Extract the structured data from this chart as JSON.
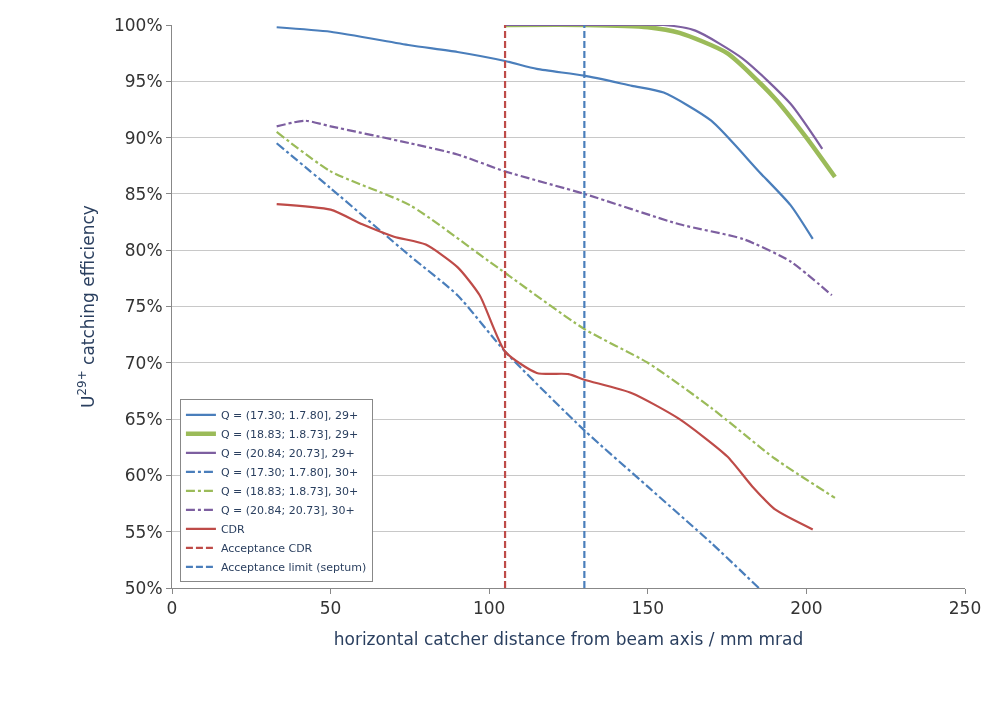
{
  "chart_data": {
    "type": "line",
    "xlabel": "horizontal catcher distance from beam axis / mm mrad",
    "ylabel": "U$^{29+}$ catching efficiency",
    "xlim": [
      0,
      250
    ],
    "xticks": [
      0,
      50,
      100,
      150,
      200,
      250
    ],
    "ylim": [
      50,
      100
    ],
    "yticks": [
      {
        "value": 50,
        "label": "50%"
      },
      {
        "value": 55,
        "label": "55%"
      },
      {
        "value": 60,
        "label": "60%"
      },
      {
        "value": 65,
        "label": "65%"
      },
      {
        "value": 70,
        "label": "70%"
      },
      {
        "value": 75,
        "label": "75%"
      },
      {
        "value": 80,
        "label": "80%"
      },
      {
        "value": 85,
        "label": "85%"
      },
      {
        "value": 90,
        "label": "90%"
      },
      {
        "value": 95,
        "label": "95%"
      },
      {
        "value": 100,
        "label": "100%"
      }
    ],
    "grid": "y",
    "legend": "bottom left",
    "marker": "none",
    "series": [
      {
        "name": "Q = (17.30; 1.7.80], 29+",
        "color": "#4a7ebb",
        "line_style": "solid",
        "x": [
          33,
          50,
          75,
          90,
          105,
          115,
          130,
          145,
          155,
          170,
          185,
          195,
          202
        ],
        "values": [
          99.8,
          99.4,
          98.2,
          97.6,
          96.8,
          96.1,
          95.5,
          94.6,
          94,
          91.5,
          87,
          84,
          81
        ]
      },
      {
        "name": "Q = (18.83; 1.8.73], 29+",
        "color": "#9bbb59",
        "line_style": "solid",
        "x": [
          105,
          130,
          150,
          160,
          175,
          190,
          200,
          209
        ],
        "values": [
          100,
          100,
          99.8,
          99.3,
          97.5,
          93.5,
          90,
          86.5
        ]
      },
      {
        "name": "Q = (20.84; 20.73], 29+",
        "color": "#7d5fa0",
        "line_style": "solid",
        "x": [
          105,
          130,
          155,
          165,
          180,
          195,
          205
        ],
        "values": [
          100,
          100,
          100,
          99.5,
          97,
          93,
          89
        ]
      },
      {
        "name": "Q = (17.30; 1.7.80], 30+",
        "color": "#4a7ebb",
        "line_style": "dashdot",
        "x": [
          33,
          50,
          75,
          90,
          105,
          130,
          150,
          170,
          185
        ],
        "values": [
          89.5,
          85.5,
          79.5,
          76,
          71,
          64,
          59,
          54,
          50
        ]
      },
      {
        "name": "Q = (18.83; 1.8.73], 30+",
        "color": "#9bbb59",
        "line_style": "dashdot",
        "x": [
          33,
          50,
          75,
          100,
          130,
          150,
          170,
          190,
          209
        ],
        "values": [
          90.5,
          87,
          84,
          79,
          73,
          70,
          66,
          61.5,
          58
        ]
      },
      {
        "name": "Q = (20.84; 20.73], 30+",
        "color": "#7d5fa0",
        "line_style": "dashdot",
        "x": [
          33,
          42,
          50,
          75,
          90,
          105,
          130,
          160,
          180,
          195,
          208
        ],
        "values": [
          91,
          91.5,
          91,
          89.5,
          88.5,
          87,
          85,
          82.3,
          81,
          79,
          76
        ]
      },
      {
        "name": "CDR",
        "color": "#be4b48",
        "line_style": "solid",
        "x": [
          33,
          50,
          60,
          70,
          80,
          90,
          97,
          105,
          115,
          125,
          130,
          145,
          160,
          175,
          183,
          190,
          202
        ],
        "values": [
          84.1,
          83.6,
          82.3,
          81.2,
          80.5,
          78.5,
          76,
          71,
          69.1,
          69,
          68.5,
          67.3,
          65,
          61.7,
          59,
          57,
          55.2
        ]
      },
      {
        "name": "Acceptance CDR",
        "color": "#be4b48",
        "line_style": "dashed",
        "x": [
          105,
          105
        ],
        "values": [
          50,
          100
        ]
      },
      {
        "name": "Acceptance limit (septum)",
        "color": "#4a7ebb",
        "line_style": "dashed",
        "x": [
          130,
          130
        ],
        "values": [
          50,
          100
        ]
      }
    ]
  }
}
